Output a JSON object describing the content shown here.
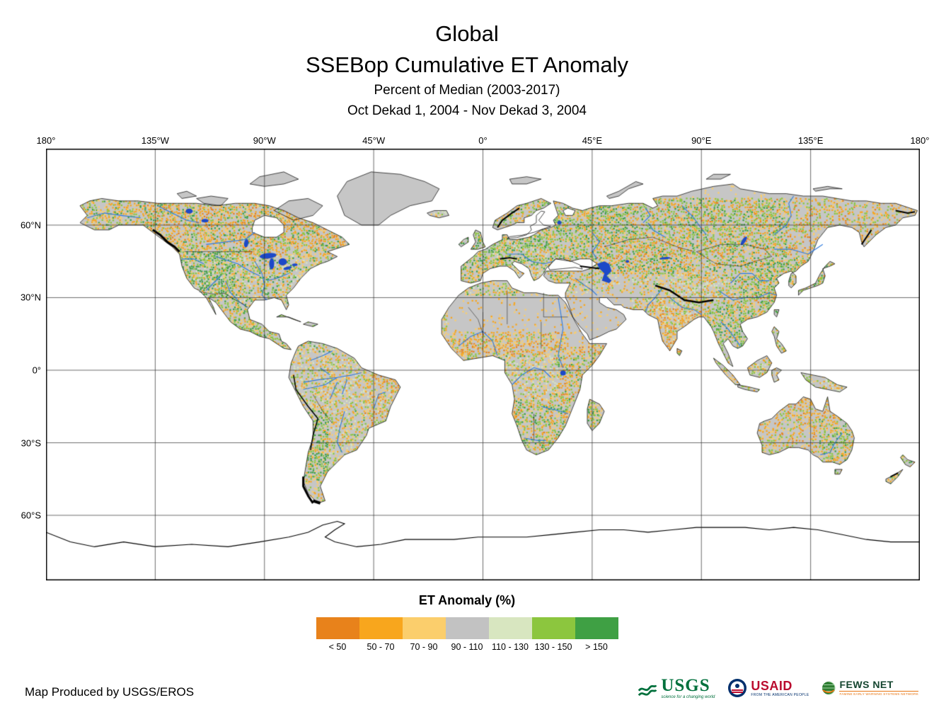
{
  "title": {
    "line1": "Global",
    "line2": "SSEBop Cumulative ET Anomaly",
    "subtitle1": "Percent of Median (2003-2017)",
    "subtitle2": "Oct Dekad 1, 2004 - Nov Dekad 3, 2004"
  },
  "map": {
    "lon_ticks": [
      {
        "label": "180°",
        "deg": -180
      },
      {
        "label": "135°W",
        "deg": -135
      },
      {
        "label": "90°W",
        "deg": -90
      },
      {
        "label": "45°W",
        "deg": -45
      },
      {
        "label": "0°",
        "deg": 0
      },
      {
        "label": "45°E",
        "deg": 45
      },
      {
        "label": "90°E",
        "deg": 90
      },
      {
        "label": "135°E",
        "deg": 135
      },
      {
        "label": "180°",
        "deg": 180
      }
    ],
    "lat_ticks": [
      {
        "label": "60°N",
        "deg": 60
      },
      {
        "label": "30°N",
        "deg": 30
      },
      {
        "label": "0°",
        "deg": 0
      },
      {
        "label": "30°S",
        "deg": -30
      },
      {
        "label": "60°S",
        "deg": -60
      }
    ]
  },
  "legend": {
    "title": "ET Anomaly (%)",
    "classes": [
      {
        "label": "< 50",
        "color": "#e8821b"
      },
      {
        "label": "50 - 70",
        "color": "#f8a61d"
      },
      {
        "label": "70 - 90",
        "color": "#fbce6c"
      },
      {
        "label": "90 - 110",
        "color": "#c2c2c2"
      },
      {
        "label": "110 - 130",
        "color": "#d8e6c0"
      },
      {
        "label": "130 - 150",
        "color": "#8cc63e"
      },
      {
        "label": "> 150",
        "color": "#3fa044"
      }
    ]
  },
  "footer": {
    "credit": "Map Produced by USGS/EROS"
  },
  "logos": {
    "usgs": {
      "name": "USGS",
      "tagline": "science for a changing world"
    },
    "usaid": {
      "name": "USAID",
      "tagline": "FROM THE AMERICAN PEOPLE"
    },
    "fewsnet": {
      "name": "FEWS NET",
      "tagline": "FAMINE EARLY WARNING SYSTEMS NETWORK"
    }
  }
}
